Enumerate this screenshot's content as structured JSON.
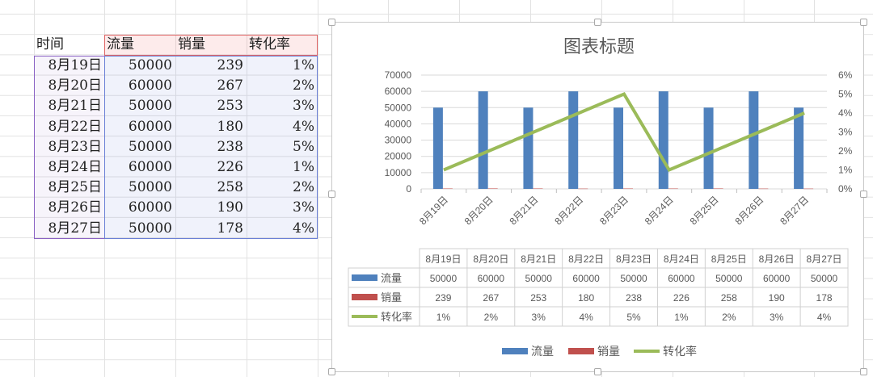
{
  "sheet": {
    "headers": [
      "时间",
      "流量",
      "销量",
      "转化率"
    ],
    "rows": [
      [
        "8月19日",
        "50000",
        "239",
        "1%"
      ],
      [
        "8月20日",
        "60000",
        "267",
        "2%"
      ],
      [
        "8月21日",
        "50000",
        "253",
        "3%"
      ],
      [
        "8月22日",
        "60000",
        "180",
        "4%"
      ],
      [
        "8月23日",
        "50000",
        "238",
        "5%"
      ],
      [
        "8月24日",
        "60000",
        "226",
        "1%"
      ],
      [
        "8月25日",
        "50000",
        "258",
        "2%"
      ],
      [
        "8月26日",
        "60000",
        "190",
        "3%"
      ],
      [
        "8月27日",
        "50000",
        "178",
        "4%"
      ]
    ]
  },
  "chart_data": {
    "type": "bar+line",
    "title": "图表标题",
    "categories": [
      "8月19日",
      "8月20日",
      "8月21日",
      "8月22日",
      "8月23日",
      "8月24日",
      "8月25日",
      "8月26日",
      "8月27日"
    ],
    "series": [
      {
        "name": "流量",
        "type": "bar",
        "axis": "primary",
        "color": "#4f81bd",
        "values": [
          50000,
          60000,
          50000,
          60000,
          50000,
          60000,
          50000,
          60000,
          50000
        ],
        "labels": [
          "50000",
          "60000",
          "50000",
          "60000",
          "50000",
          "60000",
          "50000",
          "60000",
          "50000"
        ]
      },
      {
        "name": "销量",
        "type": "bar",
        "axis": "primary",
        "color": "#c0504d",
        "values": [
          239,
          267,
          253,
          180,
          238,
          226,
          258,
          190,
          178
        ],
        "labels": [
          "239",
          "267",
          "253",
          "180",
          "238",
          "226",
          "258",
          "190",
          "178"
        ]
      },
      {
        "name": "转化率",
        "type": "line",
        "axis": "secondary",
        "color": "#9bbb59",
        "values": [
          1,
          2,
          3,
          4,
          5,
          1,
          2,
          3,
          4
        ],
        "labels": [
          "1%",
          "2%",
          "3%",
          "4%",
          "5%",
          "1%",
          "2%",
          "3%",
          "4%"
        ]
      }
    ],
    "y_primary": {
      "min": 0,
      "max": 70000,
      "ticks": [
        "0",
        "10000",
        "20000",
        "30000",
        "40000",
        "50000",
        "60000",
        "70000"
      ]
    },
    "y_secondary": {
      "min": 0,
      "max": 6,
      "ticks": [
        "0%",
        "1%",
        "2%",
        "3%",
        "4%",
        "5%",
        "6%"
      ]
    },
    "grid": true,
    "legend": "bottom",
    "data_table": true
  }
}
